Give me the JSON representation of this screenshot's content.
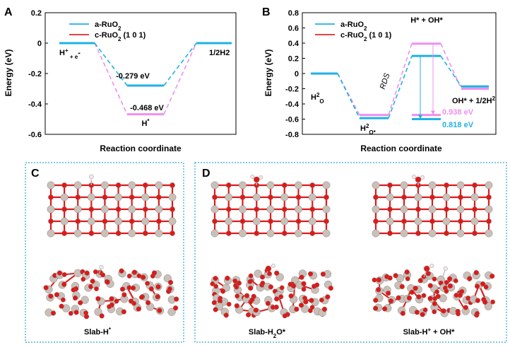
{
  "panels": {
    "A": {
      "label": "A",
      "chart_data": {
        "type": "line",
        "xlabel": "Reaction coordinate",
        "ylabel": "Energy (eV)",
        "ylim": [
          -0.6,
          0.2
        ],
        "yticks": [
          0.2,
          0,
          -0.2,
          -0.4,
          -0.6
        ],
        "ytick_labels": [
          "0.2",
          "0",
          "-0.2",
          "-0.4",
          "-0.6"
        ],
        "states": [
          {
            "parts": [
              "H",
              "+",
              " + e",
              "-"
            ]
          },
          {
            "parts": [
              "H",
              "*",
              "",
              ""
            ]
          },
          {
            "parts": [
              "1/2H",
              "",
              "",
              "2"
            ]
          }
        ],
        "series": [
          {
            "name": "a-RuO",
            "sub": "2",
            "suffix": "",
            "color": "#1fb1e6",
            "dash_color": "#1fb1e6",
            "values": [
              0,
              -0.279,
              0
            ]
          },
          {
            "name": "c-RuO",
            "sub": "2",
            "suffix": " (1 0 1)",
            "color": "#e8262a",
            "dash_color": "#f08ef0",
            "values": [
              0,
              -0.468,
              0
            ]
          }
        ],
        "annotations": [
          "-0.279 eV",
          "-0.468 eV"
        ]
      }
    },
    "B": {
      "label": "B",
      "chart_data": {
        "type": "line",
        "xlabel": "Reaction coordinate",
        "ylabel": "Energy (eV)",
        "ylim": [
          -0.8,
          0.8
        ],
        "yticks": [
          0.8,
          0.6,
          0.4,
          0.2,
          0,
          -0.2,
          -0.4,
          -0.6,
          -0.8
        ],
        "ytick_labels": [
          "0.8",
          "0.6",
          "0.4",
          "0.2",
          "0",
          "-0.2",
          "-0.4",
          "-0.6",
          "-0.8"
        ],
        "states": [
          {
            "parts": [
              "H",
              "2",
              "O",
              ""
            ]
          },
          {
            "parts": [
              "H",
              "2",
              "O*",
              ""
            ]
          },
          {
            "parts": [
              "H* + OH*",
              "",
              "",
              ""
            ]
          },
          {
            "parts": [
              "OH* + 1/2H",
              "2",
              "",
              ""
            ]
          }
        ],
        "series": [
          {
            "name": "a-RuO",
            "sub": "2",
            "suffix": "",
            "color": "#1fb1e6",
            "dash_color": "#1fb1e6",
            "values": [
              0,
              -0.587,
              0.231,
              -0.17
            ]
          },
          {
            "name": "c-RuO",
            "sub": "2",
            "suffix": " (1 0 1)",
            "color": "#e8262a",
            "dash_color": "#f08ef0",
            "values": [
              0,
              -0.545,
              0.393,
              -0.2
            ]
          }
        ],
        "barrier_refs": [
          {
            "value": -0.6,
            "color": "#1fb1e6"
          },
          {
            "value": -0.545,
            "color": "#f08ef0"
          }
        ],
        "barrier_labels": [
          "0.938 eV",
          "0.818 eV"
        ],
        "rds_label": "RDS"
      }
    }
  },
  "structures": {
    "C": {
      "label": "C",
      "captions": [
        {
          "parts": [
            "Slab-H",
            "*",
            "",
            ""
          ]
        }
      ]
    },
    "D": {
      "label": "D",
      "captions": [
        {
          "parts": [
            "Slab-H",
            "",
            "2",
            "O*"
          ]
        },
        {
          "parts": [
            "Slab-H",
            "+",
            "",
            " + OH*"
          ]
        }
      ]
    }
  },
  "colors": {
    "ru_atom": "#c9c0ba",
    "o_atom": "#dd1a1a",
    "h_atom": "#f2eaea",
    "box_border": "#2ba8d8"
  }
}
